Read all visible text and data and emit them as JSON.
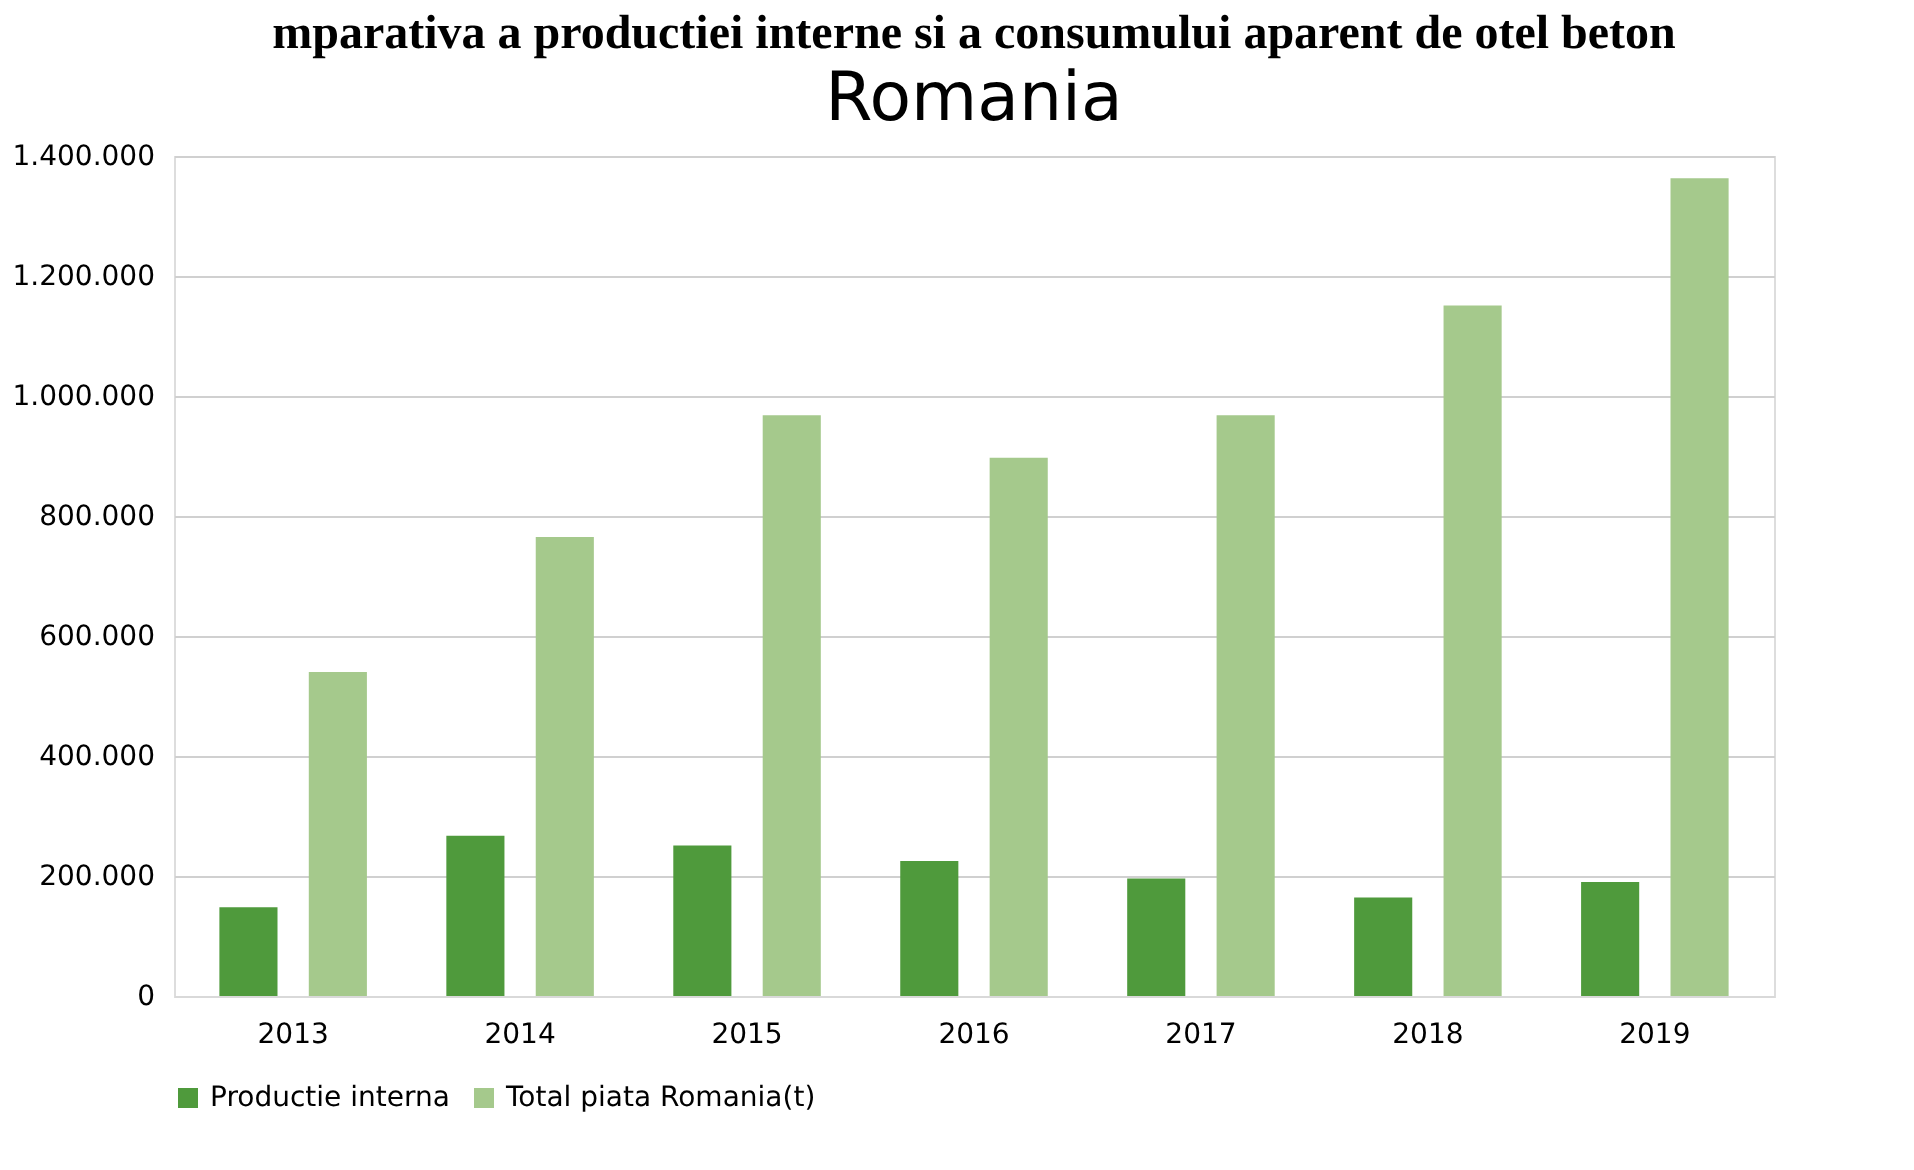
{
  "chart_data": {
    "type": "bar",
    "title": "mparativa a productiei interne si a  consumului aparent de otel beton",
    "subtitle": "Romania",
    "categories": [
      "2013",
      "2014",
      "2015",
      "2016",
      "2017",
      "2018",
      "2019"
    ],
    "series": [
      {
        "name": "Productie interna",
        "color": "#4f9a3c",
        "values": [
          148000,
          267000,
          251000,
          225000,
          196000,
          164000,
          190000
        ]
      },
      {
        "name": "Total piata Romania(t)",
        "color": "#a5c98c",
        "values": [
          540000,
          765000,
          968000,
          897000,
          968000,
          1151000,
          1363000
        ]
      }
    ],
    "ylim": [
      0,
      1400000
    ],
    "yticks": [
      {
        "value": 0,
        "label": "0"
      },
      {
        "value": 200000,
        "label": "200.000"
      },
      {
        "value": 400000,
        "label": "400.000"
      },
      {
        "value": 600000,
        "label": "600.000"
      },
      {
        "value": 800000,
        "label": "800.000"
      },
      {
        "value": 1000000,
        "label": "1.000.000"
      },
      {
        "value": 1200000,
        "label": "1.200.000"
      },
      {
        "value": 1400000,
        "label": "1.400.000"
      }
    ],
    "grid": "y",
    "legend": "bottom"
  }
}
